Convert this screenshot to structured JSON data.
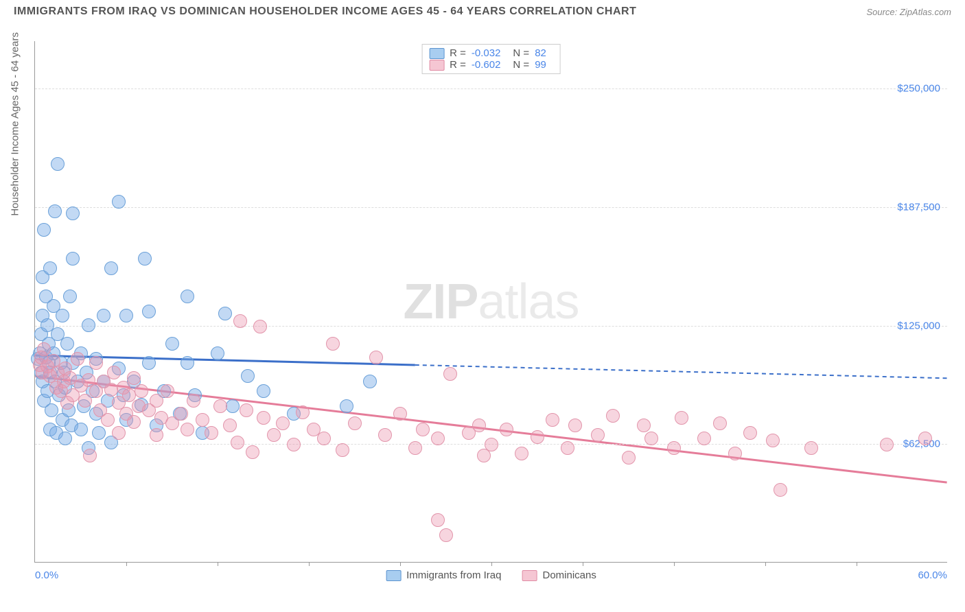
{
  "title": "IMMIGRANTS FROM IRAQ VS DOMINICAN HOUSEHOLDER INCOME AGES 45 - 64 YEARS CORRELATION CHART",
  "source": "Source: ZipAtlas.com",
  "watermark_zip": "ZIP",
  "watermark_atlas": "atlas",
  "chart": {
    "type": "scatter",
    "xlim": [
      0,
      60
    ],
    "ylim": [
      0,
      275000
    ],
    "x_min_label": "0.0%",
    "x_max_label": "60.0%",
    "y_axis_label": "Householder Income Ages 45 - 64 years",
    "y_ticks": [
      {
        "v": 62500,
        "label": "$62,500"
      },
      {
        "v": 125000,
        "label": "$125,000"
      },
      {
        "v": 187500,
        "label": "$187,500"
      },
      {
        "v": 250000,
        "label": "$250,000"
      }
    ],
    "x_tick_positions": [
      6,
      12,
      18,
      24,
      30,
      36,
      42,
      48,
      54
    ],
    "grid_color": "#dddddd",
    "background_color": "#ffffff",
    "marker_radius": 10,
    "series": [
      {
        "name": "Immigrants from Iraq",
        "color_fill": "rgba(120,170,230,0.45)",
        "color_stroke": "#6aa0d8",
        "swatch_fill": "#a8cdf0",
        "swatch_border": "#5b93cf",
        "r": "-0.032",
        "n": "82",
        "trend": {
          "x1": 0,
          "y1": 109000,
          "x2_solid": 25,
          "y2_solid": 104000,
          "x2": 60,
          "y2": 97000,
          "stroke": "#3b6fc9",
          "width": 3
        },
        "points": [
          [
            0.2,
            107000
          ],
          [
            0.3,
            110000
          ],
          [
            0.4,
            100000
          ],
          [
            0.4,
            120000
          ],
          [
            0.5,
            95000
          ],
          [
            0.5,
            130000
          ],
          [
            0.5,
            150000
          ],
          [
            0.6,
            85000
          ],
          [
            0.6,
            175000
          ],
          [
            0.7,
            108000
          ],
          [
            0.7,
            140000
          ],
          [
            0.8,
            90000
          ],
          [
            0.8,
            125000
          ],
          [
            0.9,
            105000
          ],
          [
            0.9,
            115000
          ],
          [
            1.0,
            70000
          ],
          [
            1.0,
            100000
          ],
          [
            1.0,
            155000
          ],
          [
            1.1,
            80000
          ],
          [
            1.2,
            110000
          ],
          [
            1.2,
            135000
          ],
          [
            1.3,
            95000
          ],
          [
            1.3,
            185000
          ],
          [
            1.4,
            68000
          ],
          [
            1.5,
            120000
          ],
          [
            1.5,
            210000
          ],
          [
            1.6,
            88000
          ],
          [
            1.7,
            105000
          ],
          [
            1.8,
            75000
          ],
          [
            1.8,
            130000
          ],
          [
            1.9,
            100000
          ],
          [
            2.0,
            65000
          ],
          [
            2.0,
            92000
          ],
          [
            2.1,
            115000
          ],
          [
            2.2,
            80000
          ],
          [
            2.3,
            140000
          ],
          [
            2.4,
            72000
          ],
          [
            2.5,
            105000
          ],
          [
            2.5,
            160000
          ],
          [
            2.5,
            184000
          ],
          [
            2.8,
            95000
          ],
          [
            3.0,
            70000
          ],
          [
            3.0,
            110000
          ],
          [
            3.2,
            82000
          ],
          [
            3.4,
            100000
          ],
          [
            3.5,
            60000
          ],
          [
            3.5,
            125000
          ],
          [
            3.8,
            90000
          ],
          [
            4.0,
            78000
          ],
          [
            4.0,
            107000
          ],
          [
            4.2,
            68000
          ],
          [
            4.5,
            95000
          ],
          [
            4.5,
            130000
          ],
          [
            4.8,
            85000
          ],
          [
            5.0,
            63000
          ],
          [
            5.0,
            155000
          ],
          [
            5.5,
            102000
          ],
          [
            5.5,
            190000
          ],
          [
            5.8,
            88000
          ],
          [
            6.0,
            75000
          ],
          [
            6.0,
            130000
          ],
          [
            6.5,
            95000
          ],
          [
            7.0,
            83000
          ],
          [
            7.2,
            160000
          ],
          [
            7.5,
            105000
          ],
          [
            7.5,
            132000
          ],
          [
            8.0,
            72000
          ],
          [
            8.5,
            90000
          ],
          [
            9.0,
            115000
          ],
          [
            9.5,
            78000
          ],
          [
            10.0,
            105000
          ],
          [
            10.0,
            140000
          ],
          [
            10.5,
            88000
          ],
          [
            11.0,
            68000
          ],
          [
            12.0,
            110000
          ],
          [
            12.5,
            131000
          ],
          [
            13.0,
            82000
          ],
          [
            14.0,
            98000
          ],
          [
            15.0,
            90000
          ],
          [
            17.0,
            78000
          ],
          [
            20.5,
            82000
          ],
          [
            22.0,
            95000
          ]
        ]
      },
      {
        "name": "Dominicans",
        "color_fill": "rgba(235,150,175,0.40)",
        "color_stroke": "#e295ab",
        "swatch_fill": "#f5c6d3",
        "swatch_border": "#e08ba4",
        "r": "-0.602",
        "n": "99",
        "trend": {
          "x1": 0,
          "y1": 98000,
          "x2_solid": 60,
          "y2_solid": 42000,
          "x2": 60,
          "y2": 42000,
          "stroke": "#e57c99",
          "width": 3
        },
        "points": [
          [
            0.3,
            104000
          ],
          [
            0.4,
            108000
          ],
          [
            0.5,
            100000
          ],
          [
            0.6,
            112000
          ],
          [
            0.8,
            103000
          ],
          [
            1.0,
            98000
          ],
          [
            1.2,
            106000
          ],
          [
            1.4,
            92000
          ],
          [
            1.5,
            100000
          ],
          [
            1.7,
            90000
          ],
          [
            1.9,
            95000
          ],
          [
            2.0,
            102000
          ],
          [
            2.1,
            84000
          ],
          [
            2.3,
            97000
          ],
          [
            2.5,
            88000
          ],
          [
            2.8,
            107000
          ],
          [
            3.0,
            93000
          ],
          [
            3.3,
            85000
          ],
          [
            3.5,
            96000
          ],
          [
            3.6,
            56000
          ],
          [
            4.0,
            90000
          ],
          [
            4.0,
            105000
          ],
          [
            4.3,
            80000
          ],
          [
            4.5,
            95000
          ],
          [
            4.8,
            75000
          ],
          [
            5.0,
            91000
          ],
          [
            5.2,
            100000
          ],
          [
            5.5,
            84000
          ],
          [
            5.5,
            68000
          ],
          [
            5.8,
            92000
          ],
          [
            6.0,
            78000
          ],
          [
            6.2,
            88000
          ],
          [
            6.5,
            97000
          ],
          [
            6.5,
            74000
          ],
          [
            6.8,
            82000
          ],
          [
            7.0,
            90000
          ],
          [
            7.5,
            80000
          ],
          [
            8.0,
            85000
          ],
          [
            8.0,
            67000
          ],
          [
            8.3,
            76000
          ],
          [
            8.7,
            90000
          ],
          [
            9.0,
            73000
          ],
          [
            9.6,
            78000
          ],
          [
            10.0,
            70000
          ],
          [
            10.4,
            85000
          ],
          [
            11.0,
            75000
          ],
          [
            11.6,
            68000
          ],
          [
            12.2,
            82000
          ],
          [
            12.8,
            72000
          ],
          [
            13.3,
            63000
          ],
          [
            13.5,
            127000
          ],
          [
            13.9,
            80000
          ],
          [
            14.3,
            58000
          ],
          [
            14.8,
            124000
          ],
          [
            15.0,
            76000
          ],
          [
            15.7,
            67000
          ],
          [
            16.3,
            73000
          ],
          [
            17.0,
            62000
          ],
          [
            17.6,
            79000
          ],
          [
            18.3,
            70000
          ],
          [
            19.0,
            65000
          ],
          [
            19.6,
            115000
          ],
          [
            20.2,
            59000
          ],
          [
            21.0,
            73000
          ],
          [
            22.4,
            108000
          ],
          [
            23.0,
            67000
          ],
          [
            24.0,
            78000
          ],
          [
            25.0,
            60000
          ],
          [
            25.5,
            70000
          ],
          [
            26.5,
            65000
          ],
          [
            26.5,
            22000
          ],
          [
            27.0,
            14000
          ],
          [
            27.3,
            99000
          ],
          [
            28.5,
            68000
          ],
          [
            29.2,
            72000
          ],
          [
            29.5,
            56000
          ],
          [
            30.0,
            62000
          ],
          [
            31.0,
            70000
          ],
          [
            32.0,
            57000
          ],
          [
            33.0,
            66000
          ],
          [
            34.0,
            75000
          ],
          [
            35.0,
            60000
          ],
          [
            35.5,
            72000
          ],
          [
            37.0,
            67000
          ],
          [
            38.0,
            77000
          ],
          [
            39.0,
            55000
          ],
          [
            40.0,
            72000
          ],
          [
            40.5,
            65000
          ],
          [
            42.0,
            60000
          ],
          [
            42.5,
            76000
          ],
          [
            44.0,
            65000
          ],
          [
            45.0,
            73000
          ],
          [
            46.0,
            57000
          ],
          [
            47.0,
            68000
          ],
          [
            48.5,
            64000
          ],
          [
            49.0,
            38000
          ],
          [
            51.0,
            60000
          ],
          [
            56.0,
            62000
          ],
          [
            58.5,
            65000
          ]
        ]
      }
    ],
    "bottom_legend": [
      {
        "label": "Immigrants from Iraq",
        "swatch_fill": "#a8cdf0",
        "swatch_border": "#5b93cf"
      },
      {
        "label": "Dominicans",
        "swatch_fill": "#f5c6d3",
        "swatch_border": "#e08ba4"
      }
    ]
  }
}
